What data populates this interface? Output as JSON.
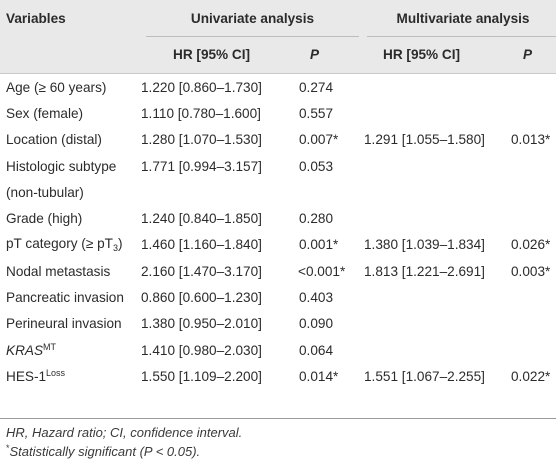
{
  "header": {
    "variables": "Variables",
    "univariate": "Univariate analysis",
    "multivariate": "Multivariate analysis",
    "hr_ci_uni": "HR [95% CI]",
    "p_uni": "P",
    "hr_ci_multi": "HR [95% CI]",
    "p_multi": "P"
  },
  "rows": [
    {
      "var": "Age (≥ 60 years)",
      "uni_hr": "1.220 [0.860–1.730]",
      "uni_p": "0.274",
      "multi_hr": "",
      "multi_p": ""
    },
    {
      "var": "Sex (female)",
      "uni_hr": "1.110 [0.780–1.600]",
      "uni_p": "0.557",
      "multi_hr": "",
      "multi_p": ""
    },
    {
      "var": "Location (distal)",
      "uni_hr": "1.280 [1.070–1.530]",
      "uni_p": "0.007*",
      "multi_hr": "1.291 [1.055–1.580]",
      "multi_p": "0.013*"
    },
    {
      "var": "Histologic subtype",
      "uni_hr": "1.771 [0.994–3.157]",
      "uni_p": "0.053",
      "multi_hr": "",
      "multi_p": ""
    },
    {
      "var": "(non-tubular)",
      "uni_hr": "",
      "uni_p": "",
      "multi_hr": "",
      "multi_p": ""
    },
    {
      "var": "Grade (high)",
      "uni_hr": "1.240 [0.840–1.850]",
      "uni_p": "0.280",
      "multi_hr": "",
      "multi_p": ""
    },
    {
      "var_prefix": "pT category (≥ pT",
      "var_sub": "3",
      "var_suffix": ")",
      "uni_hr": "1.460 [1.160–1.840]",
      "uni_p": "0.001*",
      "multi_hr": "1.380 [1.039–1.834]",
      "multi_p": "0.026*"
    },
    {
      "var": "Nodal metastasis",
      "uni_hr": "2.160 [1.470–3.170]",
      "uni_p": "<0.001*",
      "multi_hr": "1.813 [1.221–2.691]",
      "multi_p": "0.003*"
    },
    {
      "var": "Pancreatic invasion",
      "uni_hr": "0.860 [0.600–1.230]",
      "uni_p": "0.403",
      "multi_hr": "",
      "multi_p": ""
    },
    {
      "var": "Perineural invasion",
      "uni_hr": "1.380 [0.950–2.010]",
      "uni_p": "0.090",
      "multi_hr": "",
      "multi_p": ""
    },
    {
      "var_italic": "KRAS",
      "var_sup": "MT",
      "uni_hr": "1.410 [0.980–2.030]",
      "uni_p": "0.064",
      "multi_hr": "",
      "multi_p": ""
    },
    {
      "var_prefix": "HES-1",
      "var_sup": "Loss",
      "uni_hr": "1.550 [1.109–2.200]",
      "uni_p": "0.014*",
      "multi_hr": "1.551 [1.067–2.255]",
      "multi_p": "0.022*"
    }
  ],
  "footnotes": {
    "abbrev": "HR, Hazard ratio; CI, confidence interval.",
    "sig_star": "*",
    "sig_text": "Statistically significant (P < 0.05)."
  }
}
